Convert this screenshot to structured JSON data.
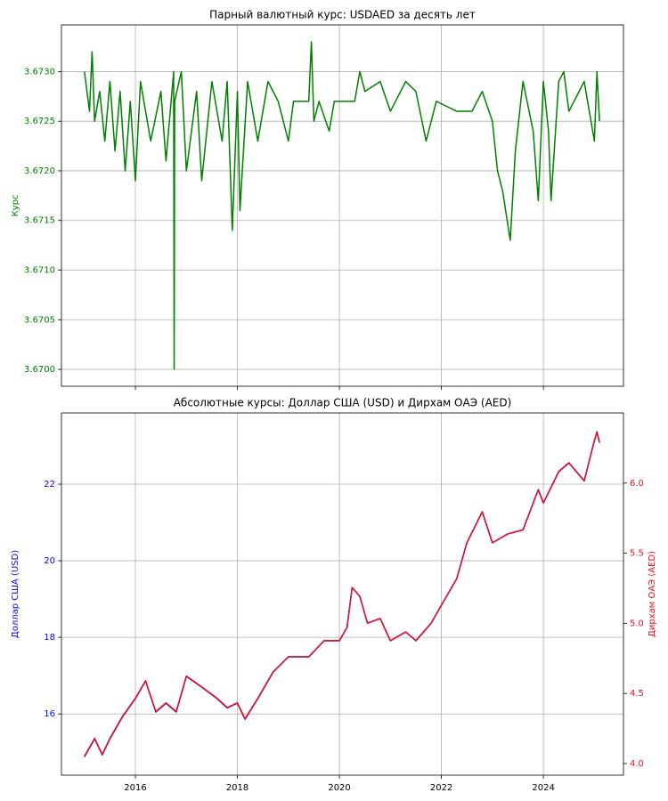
{
  "chart_data": [
    {
      "type": "line",
      "title": "Парный валютный курс: USDAED за десять лет",
      "ylabel": "Курс",
      "grid": true,
      "sharex": true,
      "x": [
        2015.0,
        2015.1,
        2015.15,
        2015.2,
        2015.3,
        2015.4,
        2015.5,
        2015.6,
        2015.7,
        2015.8,
        2015.9,
        2016.0,
        2016.1,
        2016.3,
        2016.5,
        2016.6,
        2016.75,
        2016.76,
        2016.77,
        2016.9,
        2017.0,
        2017.2,
        2017.3,
        2017.5,
        2017.7,
        2017.8,
        2017.9,
        2018.0,
        2018.05,
        2018.2,
        2018.4,
        2018.6,
        2018.8,
        2019.0,
        2019.1,
        2019.4,
        2019.45,
        2019.5,
        2019.6,
        2019.8,
        2019.9,
        2020.3,
        2020.4,
        2020.5,
        2020.8,
        2021.0,
        2021.3,
        2021.5,
        2021.7,
        2021.9,
        2022.3,
        2022.6,
        2022.8,
        2023.0,
        2023.1,
        2023.2,
        2023.35,
        2023.45,
        2023.6,
        2023.8,
        2023.9,
        2024.0,
        2024.1,
        2024.15,
        2024.3,
        2024.4,
        2024.5,
        2024.7,
        2024.8,
        2025.0,
        2025.05,
        2025.1
      ],
      "series": [
        {
          "name": "USDAED",
          "color": "#008000",
          "values": [
            3.673,
            3.6726,
            3.6732,
            3.6725,
            3.6728,
            3.6723,
            3.6729,
            3.6722,
            3.6728,
            3.672,
            3.6727,
            3.6719,
            3.6729,
            3.6723,
            3.6728,
            3.6721,
            3.673,
            3.67,
            3.6727,
            3.673,
            3.672,
            3.6728,
            3.6719,
            3.6729,
            3.6723,
            3.6729,
            3.6714,
            3.6728,
            3.6716,
            3.6729,
            3.6723,
            3.6729,
            3.6727,
            3.6723,
            3.6727,
            3.6727,
            3.6733,
            3.6725,
            3.6727,
            3.6724,
            3.6727,
            3.6727,
            3.673,
            3.6728,
            3.6729,
            3.6726,
            3.6729,
            3.6728,
            3.6723,
            3.6727,
            3.6726,
            3.6726,
            3.6728,
            3.6725,
            3.672,
            3.6718,
            3.6713,
            3.6722,
            3.6729,
            3.6724,
            3.6717,
            3.6729,
            3.6724,
            3.6717,
            3.6729,
            3.673,
            3.6726,
            3.6728,
            3.6729,
            3.6723,
            3.673,
            3.6725
          ]
        }
      ],
      "xlim": [
        2014.55,
        2025.57
      ],
      "xticks": [
        2016,
        2018,
        2020,
        2022,
        2024
      ],
      "ylim": [
        3.66983,
        3.67347
      ],
      "yticks": [
        {
          "value": 3.67,
          "label": "3.6700"
        },
        {
          "value": 3.6705,
          "label": "3.6705"
        },
        {
          "value": 3.671,
          "label": "3.6710"
        },
        {
          "value": 3.6715,
          "label": "3.6715"
        },
        {
          "value": 3.672,
          "label": "3.6720"
        },
        {
          "value": 3.6725,
          "label": "3.6725"
        },
        {
          "value": 3.673,
          "label": "3.6730"
        }
      ]
    },
    {
      "type": "line",
      "title": "Абсолютные курсы: Доллар США (USD) и Дирхам ОАЭ (AED)",
      "ylabel": "Доллар США (USD)",
      "y2label": "Дирхам ОАЭ (AED)",
      "grid": true,
      "x": [
        2015.0,
        2015.2,
        2015.35,
        2015.5,
        2015.75,
        2016.0,
        2016.2,
        2016.4,
        2016.6,
        2016.8,
        2017.0,
        2017.3,
        2017.6,
        2017.8,
        2018.0,
        2018.15,
        2018.4,
        2018.7,
        2019.0,
        2019.4,
        2019.7,
        2020.0,
        2020.15,
        2020.25,
        2020.4,
        2020.55,
        2020.8,
        2021.0,
        2021.3,
        2021.5,
        2021.8,
        2022.0,
        2022.3,
        2022.5,
        2022.8,
        2023.0,
        2023.3,
        2023.6,
        2023.9,
        2024.0,
        2024.3,
        2024.5,
        2024.8,
        2025.0,
        2025.05,
        2025.1
      ],
      "series": [
        {
          "name": "Доллар США (USD)",
          "color": "#0000ff",
          "values": [
            14.88,
            15.35,
            14.93,
            15.35,
            15.93,
            16.4,
            16.86,
            16.05,
            16.28,
            16.05,
            16.98,
            16.7,
            16.4,
            16.16,
            16.28,
            15.86,
            16.4,
            17.09,
            17.49,
            17.49,
            17.91,
            17.91,
            18.26,
            19.3,
            19.07,
            18.37,
            18.49,
            17.91,
            18.14,
            17.91,
            18.37,
            18.84,
            19.53,
            20.47,
            21.28,
            20.47,
            20.7,
            20.81,
            21.86,
            21.51,
            22.33,
            22.56,
            22.09,
            23.14,
            23.37,
            23.09
          ]
        },
        {
          "name": "Дирхам ОАЭ (AED)",
          "color": "#e8101e",
          "axis": "y2",
          "values": [
            4.052,
            4.18,
            4.065,
            4.18,
            4.338,
            4.466,
            4.591,
            4.37,
            4.433,
            4.37,
            4.624,
            4.547,
            4.466,
            4.4,
            4.433,
            4.319,
            4.466,
            4.654,
            4.762,
            4.762,
            4.877,
            4.877,
            4.972,
            5.255,
            5.193,
            5.002,
            5.035,
            4.877,
            4.939,
            4.877,
            5.002,
            5.13,
            5.318,
            5.574,
            5.794,
            5.574,
            5.637,
            5.666,
            5.952,
            5.857,
            6.08,
            6.143,
            6.015,
            6.301,
            6.364,
            6.287
          ]
        }
      ],
      "xlim": [
        2014.55,
        2025.57
      ],
      "xticks": [
        2016,
        2018,
        2020,
        2022,
        2024
      ],
      "ylim": [
        14.4,
        23.86
      ],
      "yticks": [
        16,
        18,
        20,
        22
      ],
      "y2lim": [
        3.917,
        6.5
      ],
      "y2ticks": [
        {
          "value": 4.0,
          "label": "4.0"
        },
        4.5,
        {
          "value": 5.0,
          "label": "5.0"
        },
        5.5,
        {
          "value": 6.0,
          "label": "6.0"
        }
      ]
    }
  ]
}
